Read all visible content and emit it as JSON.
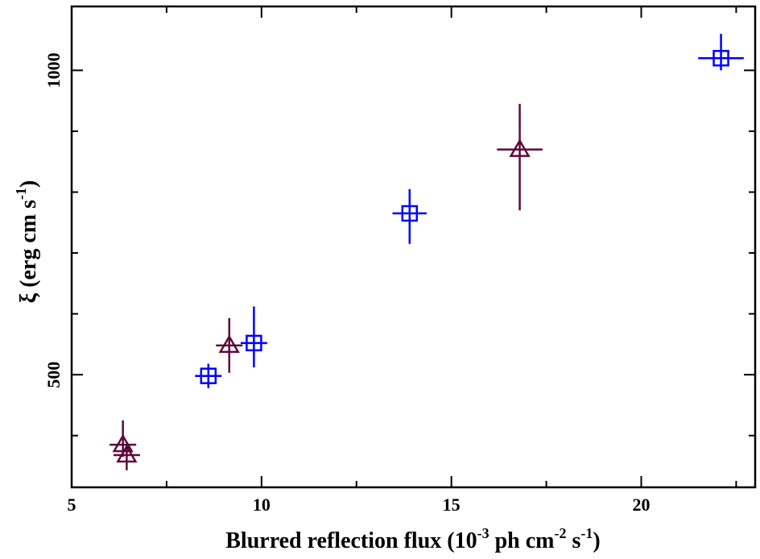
{
  "chart_data": {
    "type": "scatter",
    "xlabel": {
      "pre": "Blurred reflection flux (10",
      "exp1": "-3",
      "mid1": " ph cm",
      "exp2": "-2",
      "mid2": " s",
      "exp3": "-1",
      "post": ")"
    },
    "ylabel": {
      "pre": "ξ (erg cm s",
      "exp": "-1",
      "post": ")"
    },
    "xlim": [
      5,
      23
    ],
    "ylim": [
      315,
      1105
    ],
    "xticks": [
      5,
      10,
      15,
      20
    ],
    "yticks": [
      500,
      1000
    ],
    "grid": false,
    "series": [
      {
        "marker": "square",
        "color": "#0000ff",
        "points": [
          {
            "x": 8.6,
            "y": 498,
            "xerr": 0.35,
            "yerr_low": 20,
            "yerr_high": 20
          },
          {
            "x": 9.8,
            "y": 552,
            "xerr": 0.35,
            "yerr_low": 40,
            "yerr_high": 60
          },
          {
            "x": 13.9,
            "y": 765,
            "xerr": 0.45,
            "yerr_low": 50,
            "yerr_high": 40
          },
          {
            "x": 22.1,
            "y": 1020,
            "xerr": 0.6,
            "yerr_low": 20,
            "yerr_high": 40
          }
        ]
      },
      {
        "marker": "triangle",
        "color": "#5c0a3c",
        "points": [
          {
            "x": 6.35,
            "y": 385,
            "xerr": 0.35,
            "yerr_low": 20,
            "yerr_high": 40
          },
          {
            "x": 6.45,
            "y": 368,
            "xerr": 0.35,
            "yerr_low": 25,
            "yerr_high": 15
          },
          {
            "x": 9.15,
            "y": 548,
            "xerr": 0.35,
            "yerr_low": 45,
            "yerr_high": 45
          },
          {
            "x": 16.8,
            "y": 870,
            "xerr": 0.6,
            "yerr_low": 100,
            "yerr_high": 75
          }
        ]
      }
    ]
  }
}
